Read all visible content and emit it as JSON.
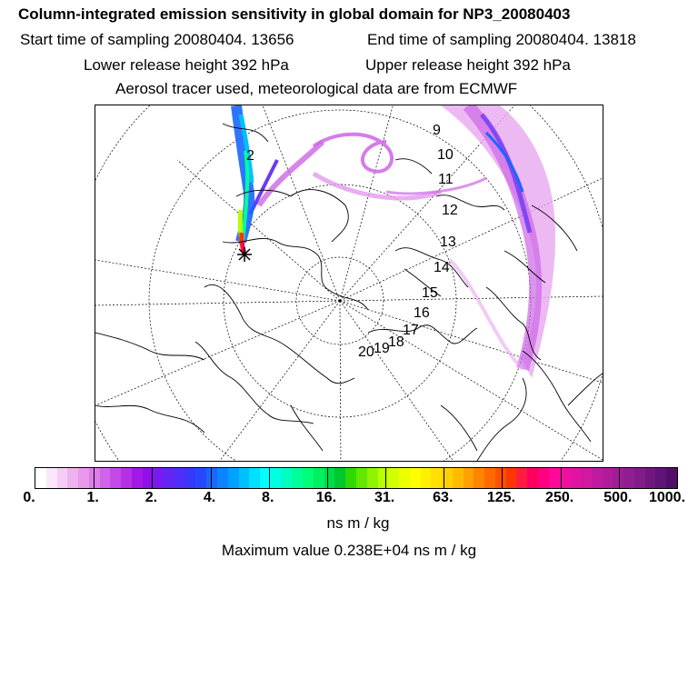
{
  "header": {
    "title": "Column-integrated emission sensitivity in global domain for NP3_20080403",
    "start_time": "Start time of sampling 20080404. 13656",
    "end_time": "End time of sampling 20080404. 13818",
    "lower_height": "Lower release height  392 hPa",
    "upper_height": "Upper release height  392 hPa",
    "tracer_info": "Aerosol tracer used, meteorological data are from ECMWF"
  },
  "map": {
    "projection": "polar stereographic (north)",
    "hour_labels": [
      "2",
      "9",
      "10",
      "11",
      "12",
      "13",
      "14",
      "15",
      "16",
      "17",
      "18",
      "19",
      "20"
    ],
    "release_marker": "star-icon"
  },
  "colorbar": {
    "tick_labels": [
      "0.",
      "1.",
      "2.",
      "4.",
      "8.",
      "16.",
      "31.",
      "63.",
      "125.",
      "250.",
      "500.",
      "1000."
    ],
    "colors": [
      "#ffffff",
      "#fbe6fb",
      "#f5ccf5",
      "#efb2f0",
      "#e998eb",
      "#dc7eea",
      "#cf64ea",
      "#c24be8",
      "#b531e6",
      "#a318e6",
      "#8f10ea",
      "#7a1af0",
      "#6424f4",
      "#4e2ef8",
      "#3838fc",
      "#2848ff",
      "#1a66ff",
      "#0d84ff",
      "#00a2ff",
      "#00c0ff",
      "#00e0ff",
      "#00ffff",
      "#00ffe0",
      "#00ffc0",
      "#00ff9a",
      "#00ff78",
      "#00f060",
      "#00dc48",
      "#00c830",
      "#30d800",
      "#60e800",
      "#90f400",
      "#b8ff00",
      "#d4ff00",
      "#ecff00",
      "#ffff00",
      "#fff000",
      "#ffe000",
      "#ffd000",
      "#ffbc00",
      "#ffa000",
      "#ff8400",
      "#ff6a00",
      "#ff5000",
      "#ff3600",
      "#ff1c40",
      "#ff0060",
      "#ff0080",
      "#ff0a98",
      "#f010a0",
      "#e014a0",
      "#d018a0",
      "#c01aa0",
      "#b01c9c",
      "#a01e98",
      "#901e90",
      "#801c88",
      "#701880",
      "#601478",
      "#500f68"
    ],
    "units": "ns m / kg",
    "max_value": "Maximum value  0.238E+04 ns m / kg"
  }
}
